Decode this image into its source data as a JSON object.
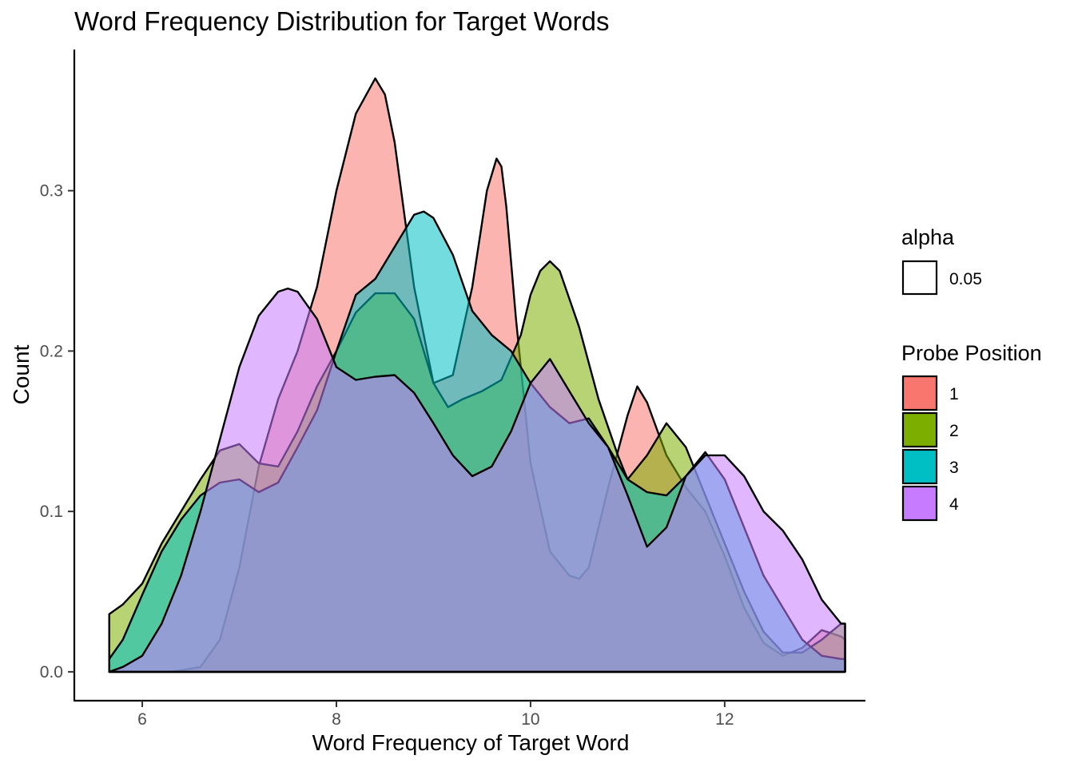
{
  "chart_data": {
    "type": "area",
    "subtype": "density",
    "title": "Word Frequency Distribution for Target Words",
    "xlabel": "Word Frequency of Target Word",
    "ylabel": "Count",
    "xlim": [
      5.3,
      13.45
    ],
    "ylim": [
      -0.018,
      0.388
    ],
    "x_ticks": [
      6,
      8,
      10,
      12
    ],
    "y_ticks": [
      0.0,
      0.1,
      0.2,
      0.3
    ],
    "grid": false,
    "legend_placement": "right",
    "alpha_legend": {
      "title": "alpha",
      "entries": [
        "0.05"
      ]
    },
    "color_legend": {
      "title": "Probe Position"
    },
    "series": [
      {
        "name": "1",
        "color": "#F8766D",
        "x": [
          5.66,
          6.0,
          6.3,
          6.6,
          6.8,
          7.0,
          7.2,
          7.4,
          7.6,
          7.8,
          8.0,
          8.2,
          8.4,
          8.5,
          8.6,
          8.8,
          9.0,
          9.2,
          9.4,
          9.55,
          9.65,
          9.7,
          9.75,
          9.85,
          10.0,
          10.2,
          10.4,
          10.5,
          10.6,
          10.8,
          11.0,
          11.1,
          11.2,
          11.4,
          11.6,
          11.8,
          12.0,
          12.2,
          12.4,
          12.6,
          12.8,
          13.0,
          13.2,
          13.24
        ],
        "y": [
          0.0,
          0.0,
          0.0,
          0.003,
          0.02,
          0.065,
          0.128,
          0.17,
          0.2,
          0.24,
          0.3,
          0.348,
          0.37,
          0.36,
          0.33,
          0.24,
          0.18,
          0.185,
          0.24,
          0.3,
          0.32,
          0.315,
          0.29,
          0.22,
          0.13,
          0.075,
          0.06,
          0.058,
          0.065,
          0.115,
          0.16,
          0.178,
          0.168,
          0.135,
          0.115,
          0.1,
          0.072,
          0.04,
          0.018,
          0.01,
          0.015,
          0.026,
          0.022,
          0.02
        ]
      },
      {
        "name": "2",
        "color": "#7CAE00",
        "x": [
          5.66,
          5.8,
          6.0,
          6.2,
          6.4,
          6.6,
          6.8,
          7.0,
          7.2,
          7.4,
          7.6,
          7.8,
          8.0,
          8.2,
          8.4,
          8.6,
          8.8,
          9.0,
          9.15,
          9.3,
          9.5,
          9.7,
          9.9,
          10.0,
          10.1,
          10.2,
          10.3,
          10.5,
          10.7,
          10.9,
          11.0,
          11.2,
          11.4,
          11.6,
          11.8,
          12.0,
          12.2,
          12.4,
          12.6,
          12.8,
          13.0,
          13.2,
          13.24
        ],
        "y": [
          0.036,
          0.042,
          0.055,
          0.08,
          0.1,
          0.12,
          0.138,
          0.142,
          0.13,
          0.128,
          0.15,
          0.178,
          0.2,
          0.224,
          0.236,
          0.236,
          0.22,
          0.18,
          0.165,
          0.17,
          0.175,
          0.182,
          0.21,
          0.235,
          0.25,
          0.256,
          0.25,
          0.215,
          0.17,
          0.135,
          0.12,
          0.135,
          0.155,
          0.14,
          0.11,
          0.08,
          0.05,
          0.025,
          0.012,
          0.012,
          0.02,
          0.03,
          0.03
        ]
      },
      {
        "name": "3",
        "color": "#00BFC4",
        "x": [
          5.66,
          5.8,
          6.0,
          6.2,
          6.4,
          6.6,
          6.8,
          7.0,
          7.2,
          7.4,
          7.6,
          7.8,
          8.0,
          8.2,
          8.4,
          8.6,
          8.8,
          8.9,
          9.0,
          9.2,
          9.4,
          9.6,
          9.8,
          10.0,
          10.2,
          10.4,
          10.6,
          10.8,
          11.0,
          11.2,
          11.4,
          11.6,
          11.8,
          12.0,
          12.2,
          12.4,
          12.6,
          12.8,
          13.0,
          13.2,
          13.24
        ],
        "y": [
          0.008,
          0.02,
          0.048,
          0.075,
          0.095,
          0.11,
          0.118,
          0.12,
          0.112,
          0.118,
          0.14,
          0.163,
          0.2,
          0.235,
          0.245,
          0.265,
          0.285,
          0.287,
          0.283,
          0.26,
          0.225,
          0.21,
          0.2,
          0.18,
          0.165,
          0.155,
          0.158,
          0.14,
          0.12,
          0.112,
          0.11,
          0.122,
          0.137,
          0.12,
          0.09,
          0.06,
          0.04,
          0.02,
          0.01,
          0.008,
          0.008
        ]
      },
      {
        "name": "4",
        "color": "#C77CFF",
        "x": [
          5.66,
          5.8,
          6.0,
          6.2,
          6.4,
          6.6,
          6.8,
          7.0,
          7.2,
          7.4,
          7.5,
          7.6,
          7.8,
          8.0,
          8.2,
          8.4,
          8.6,
          8.8,
          9.0,
          9.2,
          9.4,
          9.6,
          9.8,
          10.0,
          10.2,
          10.4,
          10.6,
          10.8,
          11.0,
          11.2,
          11.4,
          11.6,
          11.8,
          12.0,
          12.2,
          12.4,
          12.6,
          12.8,
          13.0,
          13.2,
          13.24
        ],
        "y": [
          0.0,
          0.003,
          0.01,
          0.03,
          0.06,
          0.1,
          0.145,
          0.19,
          0.222,
          0.237,
          0.239,
          0.237,
          0.22,
          0.19,
          0.182,
          0.184,
          0.185,
          0.174,
          0.155,
          0.135,
          0.122,
          0.128,
          0.15,
          0.18,
          0.195,
          0.175,
          0.155,
          0.14,
          0.11,
          0.078,
          0.09,
          0.122,
          0.135,
          0.135,
          0.122,
          0.1,
          0.088,
          0.07,
          0.045,
          0.03,
          0.03
        ]
      }
    ]
  }
}
